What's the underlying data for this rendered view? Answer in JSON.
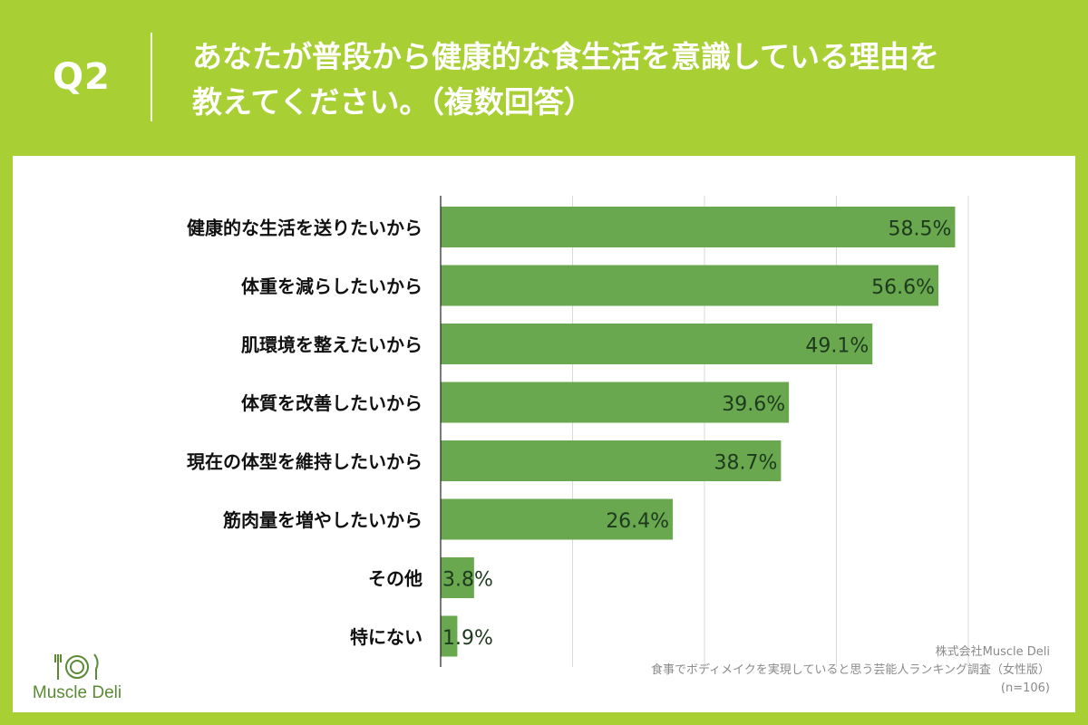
{
  "header": {
    "question_number": "Q2",
    "question_line1": "あなたが普段から健康的な食生活を意識している理由を",
    "question_line2": "教えてください。（複数回答）"
  },
  "colors": {
    "background": "#a8cf33",
    "bar": "#6aa84f",
    "value_text": "#1e3a1e",
    "grid": "#d9d9d9"
  },
  "chart_data": {
    "type": "bar",
    "orientation": "horizontal",
    "categories": [
      "健康的な生活を送りたいから",
      "体重を減らしたいから",
      "肌環境を整えたいから",
      "体質を改善したいから",
      "現在の体型を維持したいから",
      "筋肉量を増やしたいから",
      "その他",
      "特にない"
    ],
    "values": [
      58.5,
      56.6,
      49.1,
      39.6,
      38.7,
      26.4,
      3.8,
      1.9
    ],
    "value_labels": [
      "58.5%",
      "56.6%",
      "49.1%",
      "39.6%",
      "38.7%",
      "26.4%",
      "3.8%",
      "1.9%"
    ],
    "xlim": [
      0,
      60
    ],
    "grid": true
  },
  "logo": {
    "text": "Muscle Deli",
    "icon": "fork-knife-plate-icon"
  },
  "footnote": {
    "company": "株式会社Muscle Deli",
    "survey": "食事でボディメイクを実現していると思う芸能人ランキング調査（女性版）",
    "sample": "(n=106)"
  }
}
